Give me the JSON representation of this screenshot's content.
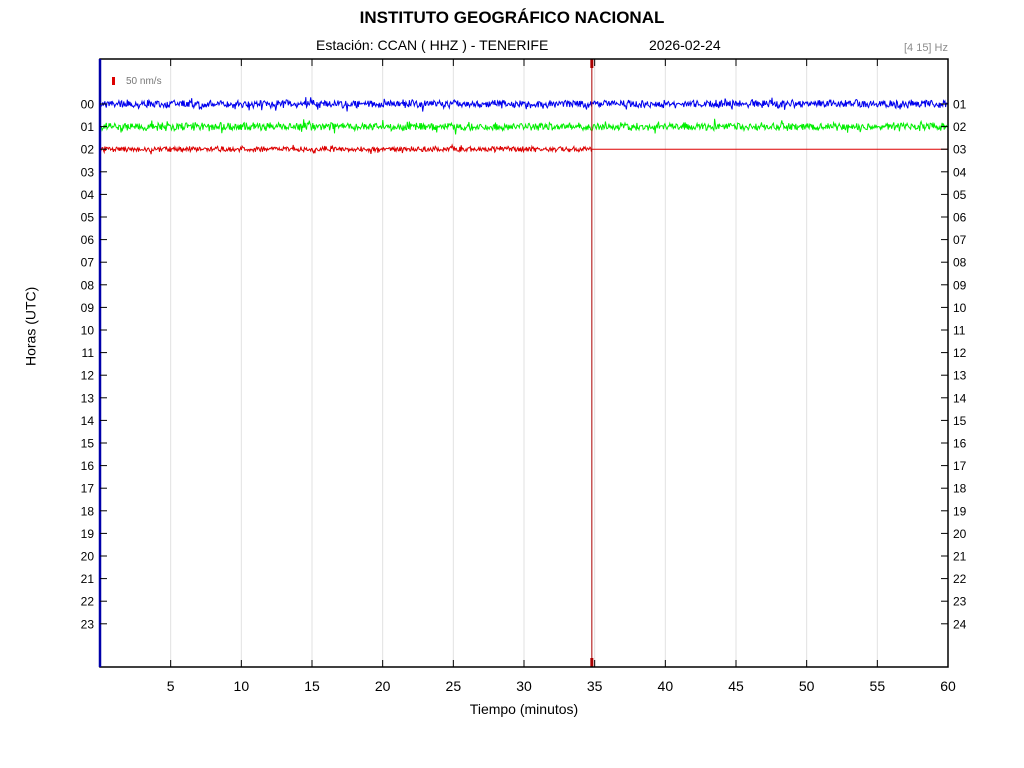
{
  "header": {
    "title": "INSTITUTO GEOGRÁFICO NACIONAL",
    "station": "Estación:  CCAN ( HHZ ) - TENERIFE",
    "date": "2026-02-24",
    "frequency_band": "[4 15] Hz"
  },
  "chart_data": {
    "type": "line",
    "xlabel": "Tiempo (minutos)",
    "ylabel": "Horas (UTC)",
    "xlim": [
      0,
      60
    ],
    "x_ticks": [
      5,
      10,
      15,
      20,
      25,
      30,
      35,
      40,
      45,
      50,
      55,
      60
    ],
    "left_ticks": [
      "00",
      "01",
      "02",
      "03",
      "04",
      "05",
      "06",
      "07",
      "08",
      "09",
      "10",
      "11",
      "12",
      "13",
      "14",
      "15",
      "16",
      "17",
      "18",
      "19",
      "20",
      "21",
      "22",
      "23"
    ],
    "right_ticks": [
      "01",
      "02",
      "03",
      "04",
      "05",
      "06",
      "07",
      "08",
      "09",
      "10",
      "11",
      "12",
      "13",
      "14",
      "15",
      "16",
      "17",
      "18",
      "19",
      "20",
      "21",
      "22",
      "23",
      "24"
    ],
    "grid": "vertical",
    "scale_bar": {
      "label": "50 nm/s",
      "color": "#dd0000"
    },
    "current_time_minute": 34.8,
    "series": [
      {
        "hour": "00",
        "start_min": 0,
        "end_min": 60,
        "color": "#0000ee",
        "amplitude": 4.5
      },
      {
        "hour": "01",
        "start_min": 0,
        "end_min": 60,
        "color": "#00ee00",
        "amplitude": 4.5
      },
      {
        "hour": "02",
        "start_min": 0,
        "end_min": 34.8,
        "color": "#dd0000",
        "amplitude": 3
      }
    ]
  }
}
